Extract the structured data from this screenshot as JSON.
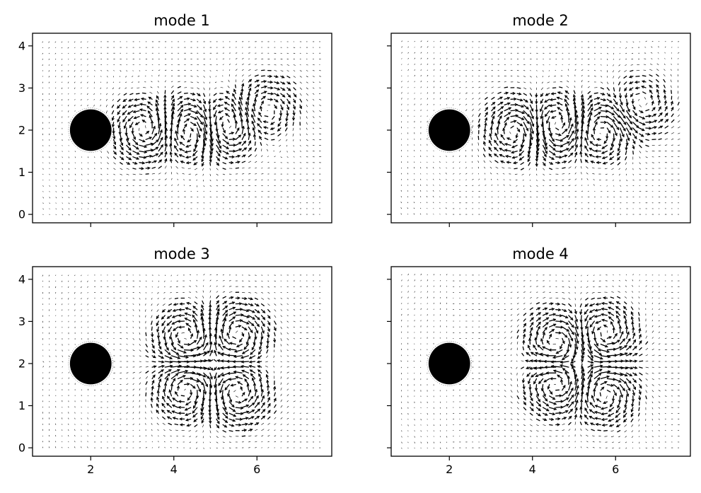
{
  "chart_data": [
    {
      "type": "quiver",
      "title": "mode 1",
      "xlim": [
        0.6,
        7.8
      ],
      "ylim": [
        -0.2,
        4.3
      ],
      "xticks": [
        2,
        4,
        6
      ],
      "yticks": [
        0,
        1,
        2,
        3,
        4
      ],
      "show_xticklabels": false,
      "show_yticklabels": true,
      "cylinder": {
        "cx": 2,
        "cy": 2,
        "r": 0.5
      },
      "vortices": [
        {
          "x": 3.3,
          "y": 2.0,
          "sign": 1,
          "strength": 1.0
        },
        {
          "x": 4.4,
          "y": 2.0,
          "sign": -1,
          "strength": 1.1
        },
        {
          "x": 5.2,
          "y": 2.1,
          "sign": 1,
          "strength": 1.0
        },
        {
          "x": 6.2,
          "y": 2.5,
          "sign": -1,
          "strength": 0.7
        }
      ]
    },
    {
      "type": "quiver",
      "title": "mode 2",
      "xlim": [
        0.6,
        7.8
      ],
      "ylim": [
        -0.2,
        4.3
      ],
      "xticks": [
        2,
        4,
        6
      ],
      "yticks": [
        0,
        1,
        2,
        3,
        4
      ],
      "show_xticklabels": false,
      "show_yticklabels": false,
      "cylinder": {
        "cx": 2,
        "cy": 2,
        "r": 0.5
      },
      "vortices": [
        {
          "x": 3.6,
          "y": 2.0,
          "sign": -1,
          "strength": 1.0
        },
        {
          "x": 4.6,
          "y": 2.1,
          "sign": 1,
          "strength": 1.1
        },
        {
          "x": 5.6,
          "y": 2.0,
          "sign": -1,
          "strength": 1.0
        },
        {
          "x": 6.6,
          "y": 2.6,
          "sign": 1,
          "strength": 0.6
        }
      ]
    },
    {
      "type": "quiver",
      "title": "mode 3",
      "xlim": [
        0.6,
        7.8
      ],
      "ylim": [
        -0.2,
        4.3
      ],
      "xticks": [
        2,
        4,
        6
      ],
      "yticks": [
        0,
        1,
        2,
        3,
        4
      ],
      "show_xticklabels": true,
      "show_yticklabels": true,
      "cylinder": {
        "cx": 2,
        "cy": 2,
        "r": 0.5
      },
      "vortices": [
        {
          "x": 4.3,
          "y": 2.6,
          "sign": 1,
          "strength": 1.0
        },
        {
          "x": 4.3,
          "y": 1.4,
          "sign": -1,
          "strength": 1.0
        },
        {
          "x": 5.5,
          "y": 2.7,
          "sign": -1,
          "strength": 1.0
        },
        {
          "x": 5.5,
          "y": 1.3,
          "sign": 1,
          "strength": 1.0
        }
      ]
    },
    {
      "type": "quiver",
      "title": "mode 4",
      "xlim": [
        0.6,
        7.8
      ],
      "ylim": [
        -0.2,
        4.3
      ],
      "xticks": [
        2,
        4,
        6
      ],
      "yticks": [
        0,
        1,
        2,
        3,
        4
      ],
      "show_xticklabels": true,
      "show_yticklabels": false,
      "cylinder": {
        "cx": 2,
        "cy": 2,
        "r": 0.5
      },
      "vortices": [
        {
          "x": 4.6,
          "y": 2.5,
          "sign": -1,
          "strength": 1.0
        },
        {
          "x": 4.6,
          "y": 1.5,
          "sign": 1,
          "strength": 1.0
        },
        {
          "x": 5.7,
          "y": 2.7,
          "sign": 1,
          "strength": 1.0
        },
        {
          "x": 5.7,
          "y": 1.3,
          "sign": -1,
          "strength": 1.0
        }
      ]
    }
  ]
}
